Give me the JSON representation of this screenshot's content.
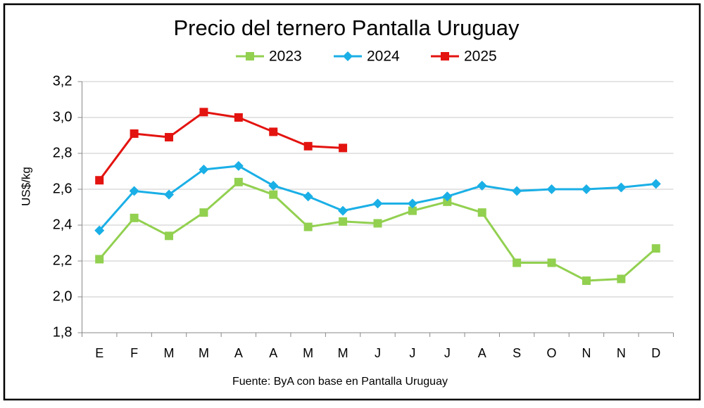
{
  "chart_data": {
    "type": "line",
    "title": "Precio del ternero Pantalla Uruguay",
    "y_label": "US$/kg",
    "source": "Fuente: ByA con base en Pantalla Uruguay",
    "categories": [
      "E",
      "F",
      "M",
      "M",
      "A",
      "A",
      "M",
      "M",
      "J",
      "J",
      "J",
      "A",
      "S",
      "O",
      "N",
      "N",
      "D"
    ],
    "series": [
      {
        "name": "2023",
        "color": "#92d050",
        "marker": "square",
        "values": [
          2.21,
          2.44,
          2.34,
          2.47,
          2.64,
          2.57,
          2.39,
          2.42,
          2.41,
          2.48,
          2.53,
          2.47,
          2.19,
          2.19,
          2.09,
          2.1,
          2.27
        ]
      },
      {
        "name": "2024",
        "color": "#1aafe6",
        "marker": "diamond",
        "values": [
          2.37,
          2.59,
          2.57,
          2.71,
          2.73,
          2.62,
          2.56,
          2.48,
          2.52,
          2.52,
          2.56,
          2.62,
          2.59,
          2.6,
          2.6,
          2.61,
          2.63
        ]
      },
      {
        "name": "2025",
        "color": "#e3130f",
        "marker": "square",
        "values": [
          2.65,
          2.91,
          2.89,
          3.03,
          3.0,
          2.92,
          2.84,
          2.83,
          null,
          null,
          null,
          null,
          null,
          null,
          null,
          null,
          null
        ]
      }
    ],
    "ylim": [
      1.8,
      3.2
    ],
    "yticks": [
      {
        "value": 1.8,
        "label": "1,8"
      },
      {
        "value": 2.0,
        "label": "2,0"
      },
      {
        "value": 2.2,
        "label": "2,2"
      },
      {
        "value": 2.4,
        "label": "2,4"
      },
      {
        "value": 2.6,
        "label": "2,6"
      },
      {
        "value": 2.8,
        "label": "2,8"
      },
      {
        "value": 3.0,
        "label": "3,0"
      },
      {
        "value": 3.2,
        "label": "3,2"
      }
    ],
    "grid": true,
    "legend": "top"
  }
}
